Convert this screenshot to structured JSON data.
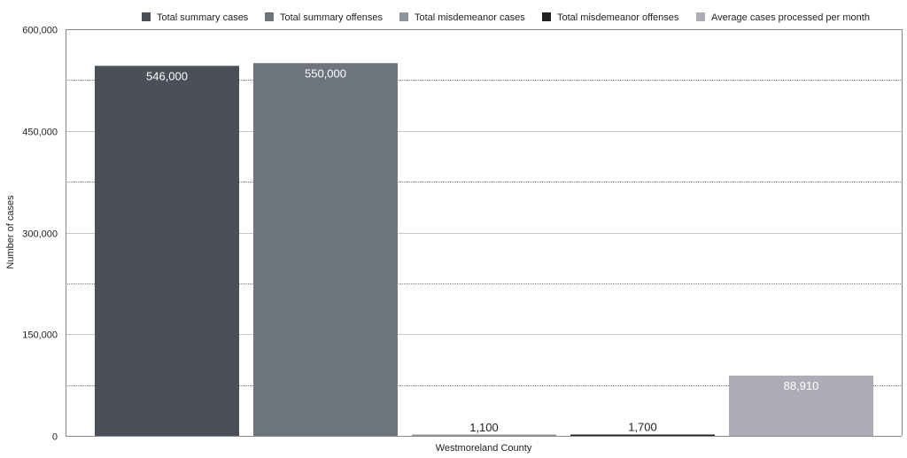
{
  "chart_data": {
    "type": "bar",
    "title": "",
    "xlabel": "Westmoreland County",
    "ylabel": "Number of cases",
    "ylim": [
      0,
      600000
    ],
    "yticks": [
      0,
      150000,
      300000,
      450000,
      600000
    ],
    "ytick_labels": [
      "0",
      "150,000",
      "300,000",
      "450,000",
      "600,000"
    ],
    "categories": [
      "Westmoreland County"
    ],
    "legend_position": "top-right",
    "grid": true,
    "series": [
      {
        "name": "Total summary cases",
        "values": [
          546000
        ],
        "label": "546,000",
        "color": "#4b5058",
        "label_color": "#ffffff"
      },
      {
        "name": "Total summary offenses",
        "values": [
          550000
        ],
        "label": "550,000",
        "color": "#6e747d",
        "label_color": "#ffffff"
      },
      {
        "name": "Total misdemeanor cases",
        "values": [
          1100
        ],
        "label": "1,100",
        "color": "#8f959e",
        "label_color": "#222222"
      },
      {
        "name": "Total misdemeanor offenses",
        "values": [
          1700
        ],
        "label": "1,700",
        "color": "#222222",
        "label_color": "#222222"
      },
      {
        "name": "Average cases processed per month",
        "values": [
          88910
        ],
        "label": "88,910",
        "color": "#adadb8",
        "label_color": "#ffffff"
      }
    ]
  }
}
